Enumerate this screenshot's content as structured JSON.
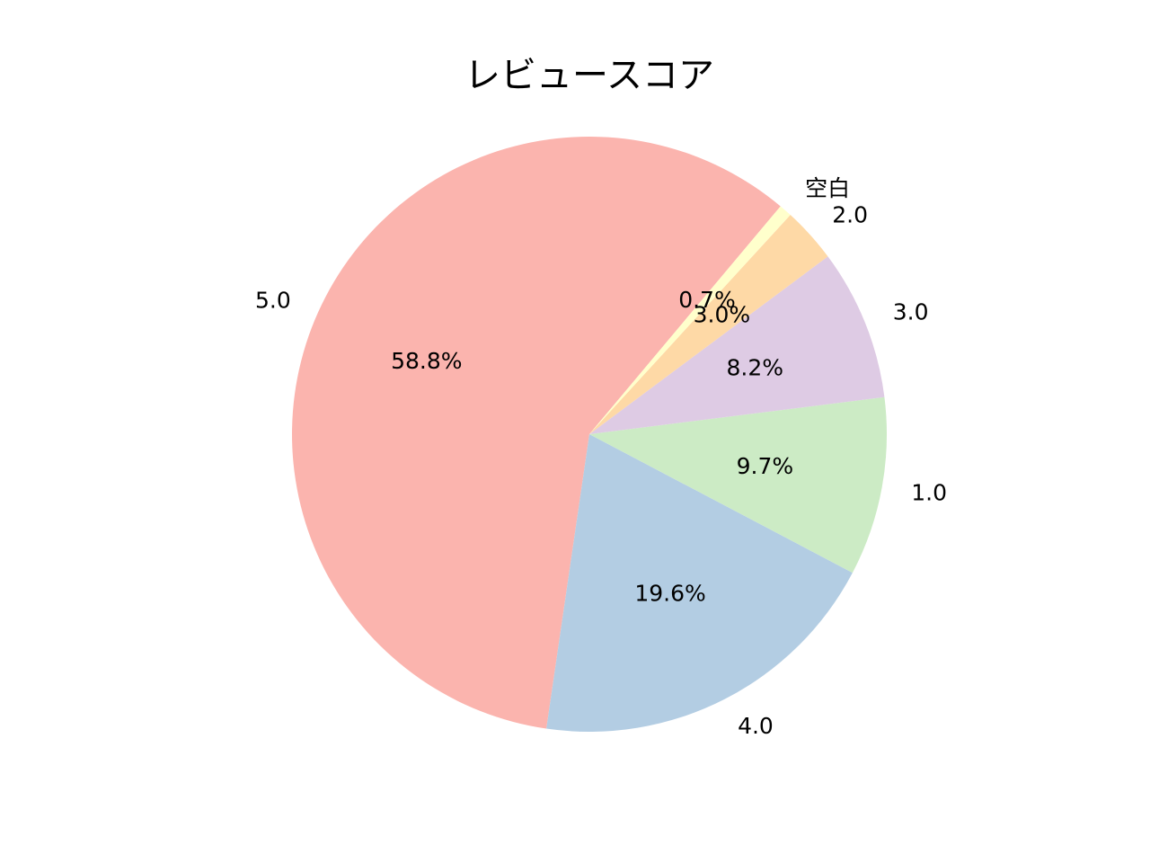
{
  "chart_data": {
    "type": "pie",
    "title": "レビュースコア",
    "categories": [
      "5.0",
      "4.0",
      "1.0",
      "3.0",
      "2.0",
      "空白"
    ],
    "values": [
      58.8,
      19.6,
      9.7,
      8.2,
      3.0,
      0.7
    ],
    "percent_labels": [
      "58.8%",
      "19.6%",
      "9.7%",
      "8.2%",
      "3.0%",
      "0.7%"
    ],
    "colors": [
      "#fbb4ae",
      "#b3cde3",
      "#ccebc5",
      "#decbe4",
      "#fed9a6",
      "#ffffcc"
    ],
    "start_angle_deg": 50,
    "direction": "counterclockwise",
    "legend": "none"
  }
}
